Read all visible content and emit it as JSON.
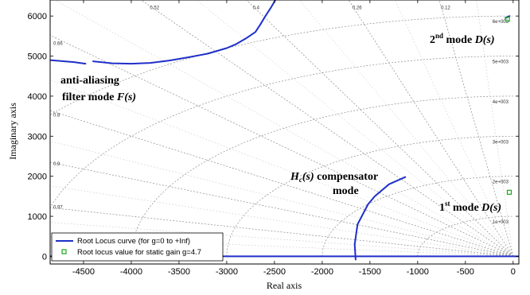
{
  "chart_data": {
    "type": "line",
    "xlabel": "Real axis",
    "ylabel": "Imaginary axis",
    "xlim": [
      -4850,
      60
    ],
    "ylim": [
      -190,
      6400
    ],
    "xticks": [
      -4500,
      -4000,
      -3500,
      -3000,
      -2500,
      -2000,
      -1500,
      -1000,
      -500,
      0
    ],
    "yticks": [
      0,
      1000,
      2000,
      3000,
      4000,
      5000,
      6000
    ],
    "grid": true,
    "damping_ratios": [
      {
        "zeta": 0.97,
        "label": "0.97"
      },
      {
        "zeta": 0.9,
        "label": "0.9"
      },
      {
        "zeta": 0.8,
        "label": "0.8"
      },
      {
        "zeta": 0.66,
        "label": "0.66"
      },
      {
        "zeta": 0.52,
        "label": "0.52"
      },
      {
        "zeta": 0.4,
        "label": "0.4"
      },
      {
        "zeta": 0.26,
        "label": "0.26"
      },
      {
        "zeta": 0.12,
        "label": "0.12"
      }
    ],
    "natural_frequencies": [
      {
        "wn": 1000,
        "label": "1e+003"
      },
      {
        "wn": 2000,
        "label": "2e+003"
      },
      {
        "wn": 3000,
        "label": "3e+003"
      },
      {
        "wn": 4000,
        "label": "4e+003"
      },
      {
        "wn": 5000,
        "label": "5e+003"
      },
      {
        "wn": 6000,
        "label": "6e+003"
      }
    ],
    "series": [
      {
        "name": "Root Locus curve (for g=0 to +Inf)",
        "color": "#1f2fc8",
        "branches": [
          [
            [
              -4850,
              4900
            ],
            [
              -4600,
              4850
            ],
            [
              -4480,
              4810
            ]
          ],
          [
            [
              -4400,
              4870
            ],
            [
              -4200,
              4820
            ],
            [
              -4000,
              4810
            ],
            [
              -3800,
              4830
            ],
            [
              -3600,
              4890
            ],
            [
              -3400,
              4970
            ],
            [
              -3200,
              5060
            ],
            [
              -3000,
              5200
            ],
            [
              -2900,
              5300
            ],
            [
              -2800,
              5440
            ],
            [
              -2700,
              5600
            ],
            [
              -2650,
              5780
            ],
            [
              -2600,
              5980
            ],
            [
              -2540,
              6200
            ],
            [
              -2490,
              6400
            ]
          ],
          [
            [
              -1650,
              -80
            ],
            [
              -1660,
              300
            ],
            [
              -1630,
              800
            ],
            [
              -1520,
              1300
            ],
            [
              -1450,
              1500
            ],
            [
              -1300,
              1800
            ],
            [
              -1130,
              1980
            ]
          ],
          [
            [
              -4850,
              0
            ],
            [
              60,
              0
            ]
          ],
          [
            [
              -80,
              5950
            ],
            [
              -40,
              6000
            ]
          ]
        ]
      },
      {
        "name": "Root locus value for static gain g=4.7",
        "color": "#1aa81a",
        "points": [
          [
            -40,
            1600
          ],
          [
            -60,
            5920
          ]
        ]
      }
    ],
    "annotations": [
      {
        "id": "aa",
        "lines": [
          "anti-aliasing",
          "filter mode F(s)"
        ]
      },
      {
        "id": "comp",
        "lines": [
          "Hc(s) compensator",
          "mode"
        ]
      },
      {
        "id": "second",
        "lines": [
          "2nd mode D(s)"
        ]
      },
      {
        "id": "first",
        "lines": [
          "1st mode D(s)"
        ]
      }
    ]
  }
}
